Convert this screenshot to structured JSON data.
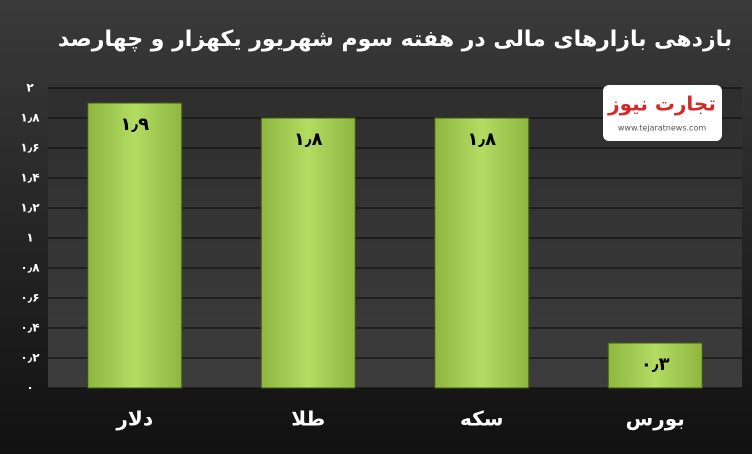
{
  "chart_data": {
    "type": "bar",
    "title": "بازدهی بازارهای مالی در هفته سوم شهریور یکهزار و چهارصد",
    "categories": [
      "دلار",
      "طلا",
      "سکه",
      "بورس"
    ],
    "values": [
      1.9,
      1.8,
      1.8,
      0.3
    ],
    "value_labels": [
      "۱٫۹",
      "۱٫۸",
      "۱٫۸",
      "۰٫۳"
    ],
    "color": "#a6cf55",
    "ylim": [
      0,
      2
    ],
    "yticks": [
      {
        "value": 0,
        "label": "۰"
      },
      {
        "value": 0.2,
        "label": "۰٫۲"
      },
      {
        "value": 0.4,
        "label": "۰٫۴"
      },
      {
        "value": 0.6,
        "label": "۰٫۶"
      },
      {
        "value": 0.8,
        "label": "۰٫۸"
      },
      {
        "value": 1,
        "label": "۱"
      },
      {
        "value": 1.2,
        "label": "۱٫۲"
      },
      {
        "value": 1.4,
        "label": "۱٫۴"
      },
      {
        "value": 1.6,
        "label": "۱٫۶"
      },
      {
        "value": 1.8,
        "label": "۱٫۸"
      },
      {
        "value": 2,
        "label": "۲"
      }
    ],
    "grid": true
  },
  "logo": {
    "name": "تجارت نیوز",
    "url": "www.tejaratnews.com"
  }
}
